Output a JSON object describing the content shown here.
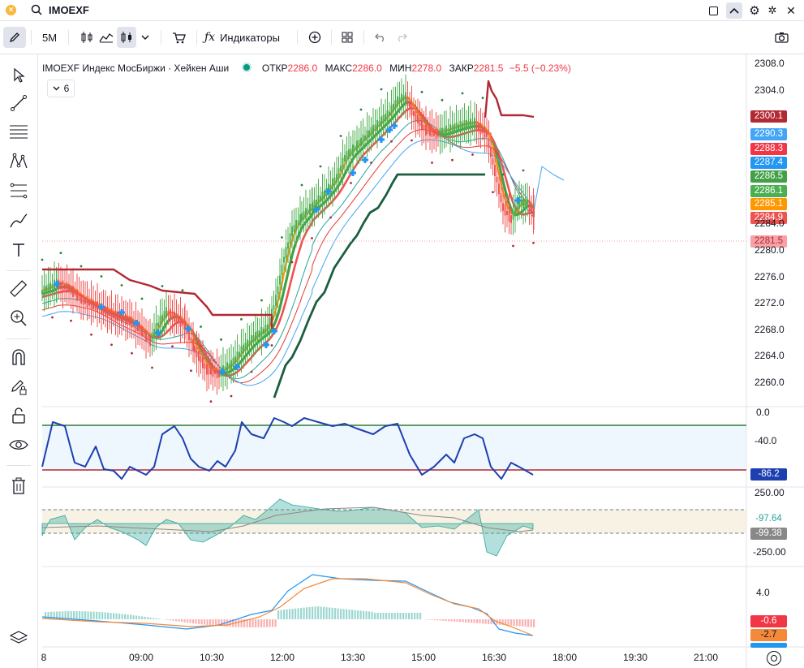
{
  "header": {
    "symbol": "IMOEXF"
  },
  "toolbar": {
    "interval": "5M",
    "indicators_label": "Индикаторы"
  },
  "legend": {
    "title": "IMOEXF Индекс МосБиржи · Хейкен Аши",
    "open_label": "ОТКР",
    "open": "2286.0",
    "high_label": "МАКС",
    "high": "2286.0",
    "low_label": "МИН",
    "low": "2278.0",
    "close_label": "ЗАКР",
    "close": "2281.5",
    "change": "−5.5 (−0.23%)",
    "indicator_count": "6"
  },
  "price_axis": [
    "2308.0",
    "2304.0",
    "2284.0",
    "2280.0",
    "2276.0",
    "2272.0",
    "2268.0",
    "2264.0",
    "2260.0"
  ],
  "price_tags": [
    {
      "value": "2300.1",
      "color": "#b22833"
    },
    {
      "value": "2290.3",
      "color": "#42a5f5"
    },
    {
      "value": "2288.3",
      "color": "#f23645"
    },
    {
      "value": "2287.4",
      "color": "#2196f3"
    },
    {
      "value": "2286.5",
      "color": "#43a047"
    },
    {
      "value": "2286.1",
      "color": "#4caf50"
    },
    {
      "value": "2285.1",
      "color": "#ff9800"
    },
    {
      "value": "2284.9",
      "color": "#ef5350"
    },
    {
      "value": "2281.5",
      "color": "#f7a1a6"
    }
  ],
  "osc1": {
    "axis": [
      "0.0",
      "-40.0"
    ],
    "tag": "-86.2",
    "tag_color": "#1e40af"
  },
  "osc2": {
    "axis": [
      "250.00",
      "-250.00"
    ],
    "tag1": "-97.64",
    "tag1_color": "#26a69a",
    "tag2": "-99.38",
    "tag2_color": "#888888"
  },
  "osc3": {
    "axis": [
      "4.0"
    ],
    "tag1": "-0.6",
    "tag1_color": "#f23645",
    "tag2": "-2.7",
    "tag2_color": "#f5893a",
    "tag3_color": "#2196f3"
  },
  "time_axis": [
    "8",
    "09:00",
    "10:30",
    "12:00",
    "13:30",
    "15:00",
    "16:30",
    "18:00",
    "19:30",
    "21:00"
  ],
  "chart_data": {
    "type": "line",
    "title": "IMOEXF Индекс МосБиржи · Хейкен Аши",
    "x": [
      "09:00",
      "10:30",
      "12:00",
      "13:30",
      "15:00",
      "16:30"
    ],
    "series": [
      {
        "values": [
          2272,
          2266,
          2268,
          2298,
          2300,
          2284
        ]
      }
    ]
  }
}
